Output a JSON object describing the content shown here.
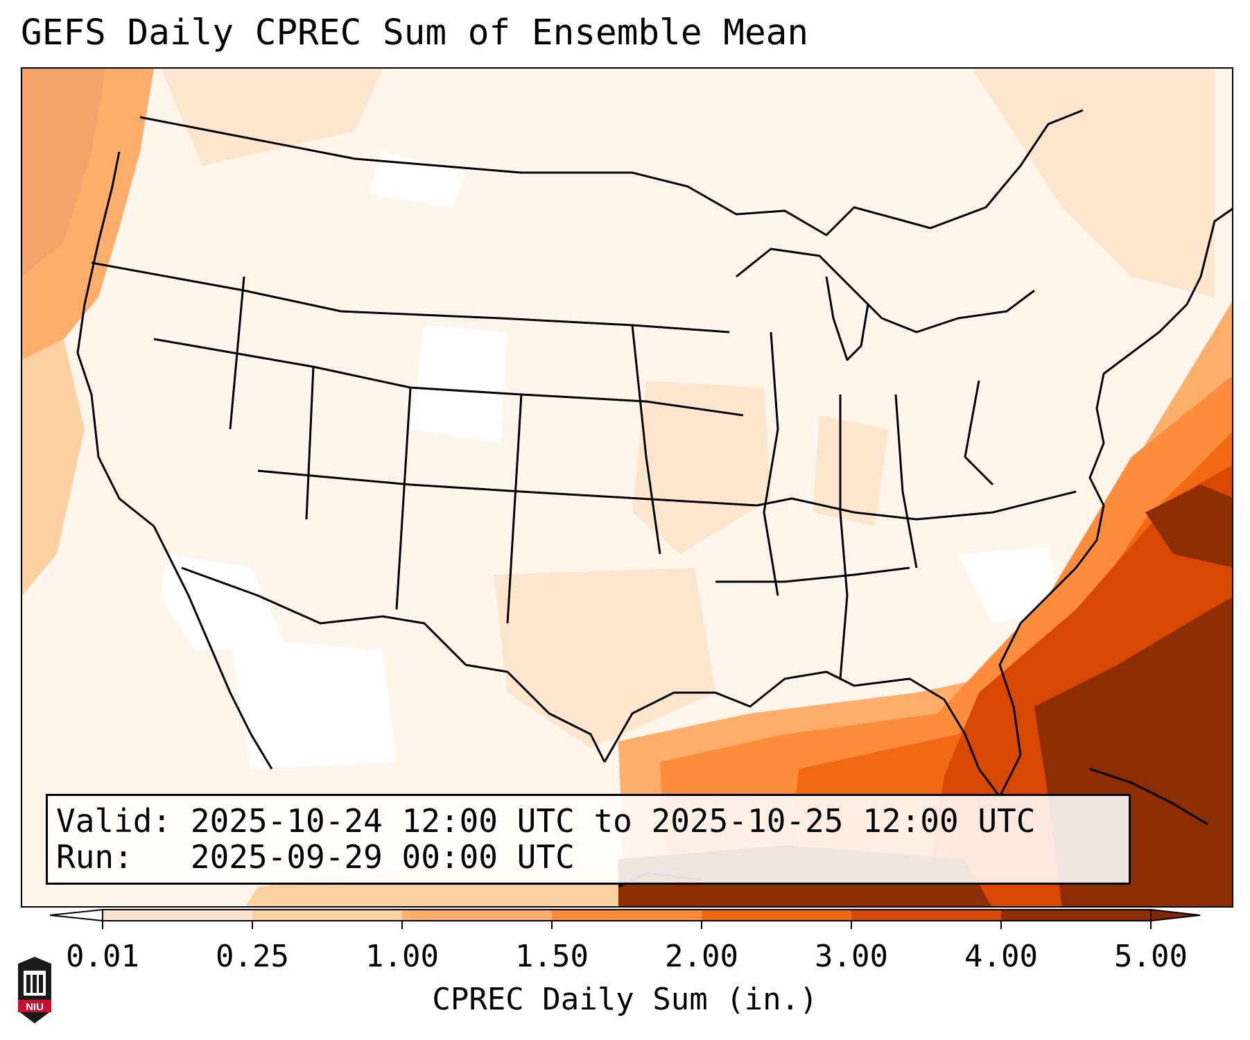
{
  "title": "GEFS Daily CPREC Sum of Ensemble Mean",
  "info": {
    "valid_label": "Valid:",
    "valid_value": "2025-10-24 12:00 UTC to 2025-10-25 12:00 UTC",
    "run_label": "Run:",
    "run_value": "2025-09-29 00:00 UTC"
  },
  "colorbar": {
    "label": "CPREC Daily Sum (in.)",
    "ticks": [
      "0.01",
      "0.25",
      "1.00",
      "1.50",
      "2.00",
      "3.00",
      "4.00",
      "5.00"
    ],
    "colors": [
      "#fff5eb",
      "#fee6ce",
      "#fdd0a2",
      "#fdae6b",
      "#fd8d3c",
      "#f16913",
      "#d94801",
      "#8c2d04"
    ],
    "under_color": "#ffffff",
    "over_color": "#7f2704"
  },
  "logo": {
    "text": "NIU",
    "colors": {
      "shield": "#1a1a1a",
      "band": "#c8102e"
    }
  }
}
